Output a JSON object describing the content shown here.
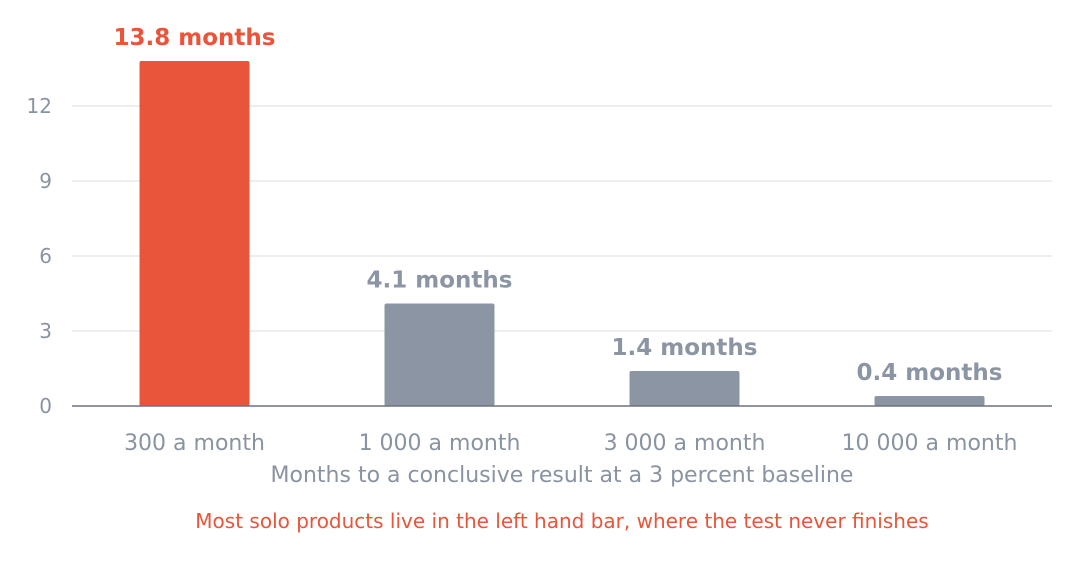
{
  "chart_data": {
    "type": "bar",
    "categories": [
      "300 a month",
      "1 000 a month",
      "3 000 a month",
      "10 000 a month"
    ],
    "values": [
      13.8,
      4.1,
      1.4,
      0.4
    ],
    "data_labels": [
      "13.8 months",
      "4.1 months",
      "1.4 months",
      "0.4 months"
    ],
    "highlight_index": 0,
    "xlabel": "Months to a conclusive result at a 3 percent baseline",
    "ylabel": "",
    "yticks": [
      0,
      3,
      6,
      9,
      12
    ],
    "ylim": [
      0,
      14
    ],
    "grid": true,
    "annotation": "Most solo products live in the left hand bar, where the test never finishes"
  },
  "colors": {
    "highlight": "#e8553a",
    "bar": "#8c95a3",
    "axis_text": "#8a93a2",
    "grid": "#e6e8eb",
    "axis_line": "#6b7280"
  }
}
